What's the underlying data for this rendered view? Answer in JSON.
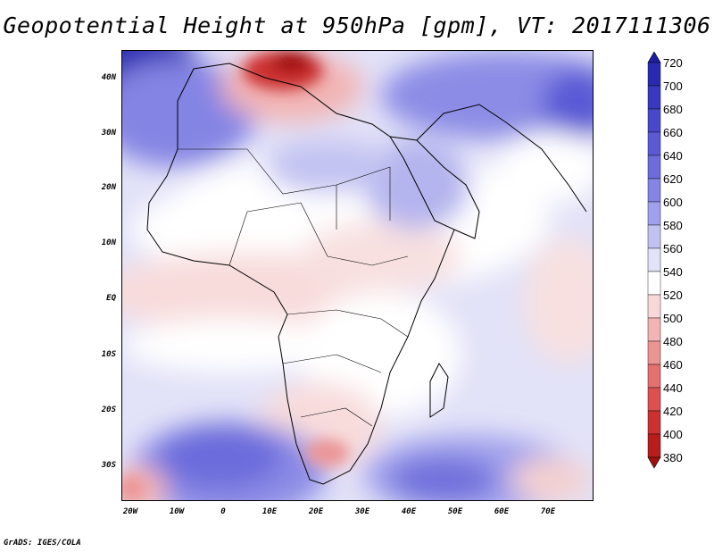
{
  "title": "Geopotential Height at 950hPa [gpm], VT: 2017111306",
  "credit": "GrADS: IGES/COLA",
  "map": {
    "region": "Africa and Middle East",
    "lat_labels": [
      "40N",
      "30N",
      "20N",
      "10N",
      "EQ",
      "10S",
      "20S",
      "30S"
    ],
    "lon_labels": [
      "20W",
      "10W",
      "0",
      "10E",
      "20E",
      "30E",
      "40E",
      "50E",
      "60E",
      "70E"
    ]
  },
  "colorbar": {
    "levels": [
      "720",
      "700",
      "680",
      "660",
      "640",
      "620",
      "600",
      "580",
      "560",
      "540",
      "520",
      "500",
      "480",
      "460",
      "440",
      "420",
      "400",
      "380"
    ],
    "colors": [
      "#1e1ea0",
      "#2a2ab0",
      "#3838c0",
      "#4848cc",
      "#5a5ad6",
      "#6c6cdc",
      "#8484e4",
      "#a0a0ec",
      "#c2c2f2",
      "#e2e2f8",
      "#ffffff",
      "#f8d8d8",
      "#f2b4b4",
      "#ec9494",
      "#e47070",
      "#dc5050",
      "#cc3030",
      "#b81c1c",
      "#a01010"
    ]
  }
}
